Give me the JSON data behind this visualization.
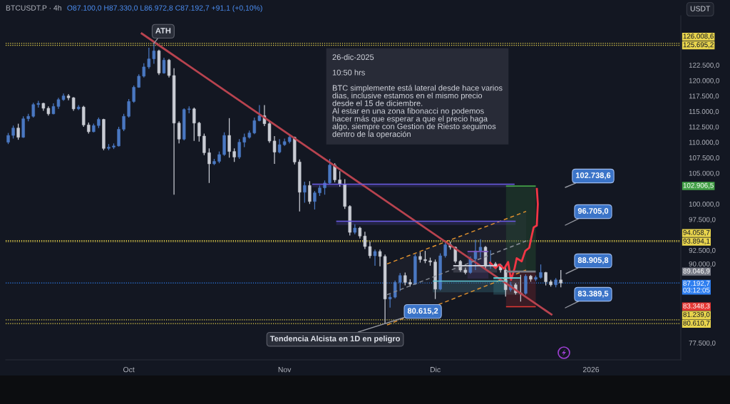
{
  "chart_data": {
    "type": "candlestick",
    "title": "BTCUSDT.P · 4h",
    "subtitle": "O87.100,0 H87.330,0 L86.972,8 C87.192,7 +91,1 (+0,10%)",
    "ylabel": "USDT",
    "x": [
      "2025-09-07",
      "2025-09-08",
      "2025-09-09",
      "2025-09-10",
      "2025-09-11",
      "2025-09-12",
      "2025-09-13",
      "2025-09-14",
      "2025-09-15",
      "2025-09-16",
      "2025-09-17",
      "2025-09-18",
      "2025-09-19",
      "2025-09-20",
      "2025-09-21",
      "2025-09-22",
      "2025-09-23",
      "2025-09-24",
      "2025-09-25",
      "2025-09-26",
      "2025-09-27",
      "2025-09-28",
      "2025-09-29",
      "2025-09-30",
      "2025-10-01",
      "2025-10-02",
      "2025-10-03",
      "2025-10-04",
      "2025-10-05",
      "2025-10-06",
      "2025-10-07",
      "2025-10-08",
      "2025-10-09",
      "2025-10-10",
      "2025-10-11",
      "2025-10-12",
      "2025-10-13",
      "2025-10-14",
      "2025-10-15",
      "2025-10-16",
      "2025-10-17",
      "2025-10-18",
      "2025-10-19",
      "2025-10-20",
      "2025-10-21",
      "2025-10-22",
      "2025-10-23",
      "2025-10-24",
      "2025-10-25",
      "2025-10-26",
      "2025-10-27",
      "2025-10-28",
      "2025-10-29",
      "2025-10-30",
      "2025-10-31",
      "2025-11-01",
      "2025-11-02",
      "2025-11-03",
      "2025-11-04",
      "2025-11-05",
      "2025-11-06",
      "2025-11-07",
      "2025-11-08",
      "2025-11-09",
      "2025-11-10",
      "2025-11-11",
      "2025-11-12",
      "2025-11-13",
      "2025-11-14",
      "2025-11-15",
      "2025-11-16",
      "2025-11-17",
      "2025-11-18",
      "2025-11-19",
      "2025-11-20",
      "2025-11-21",
      "2025-11-22",
      "2025-11-23",
      "2025-11-24",
      "2025-11-25",
      "2025-11-26",
      "2025-11-27",
      "2025-11-28",
      "2025-11-29",
      "2025-11-30",
      "2025-12-01",
      "2025-12-02",
      "2025-12-03",
      "2025-12-04",
      "2025-12-05",
      "2025-12-06",
      "2025-12-07",
      "2025-12-08",
      "2025-12-09",
      "2025-12-10",
      "2025-12-11",
      "2025-12-12",
      "2025-12-13",
      "2025-12-14",
      "2025-12-15",
      "2025-12-16",
      "2025-12-17",
      "2025-12-18",
      "2025-12-19",
      "2025-12-20",
      "2025-12-21",
      "2025-12-22",
      "2025-12-23",
      "2025-12-24",
      "2025-12-25",
      "2025-12-26"
    ],
    "ohlc": [
      [
        110000,
        111500,
        109700,
        111100
      ],
      [
        111100,
        112700,
        110600,
        112300
      ],
      [
        112300,
        113000,
        110400,
        110800
      ],
      [
        110800,
        114200,
        110700,
        113800
      ],
      [
        113800,
        114600,
        113400,
        114200
      ],
      [
        114200,
        116400,
        114000,
        116100
      ],
      [
        116100,
        116700,
        115600,
        116300
      ],
      [
        116300,
        116400,
        115100,
        115500
      ],
      [
        115500,
        115800,
        114300,
        114600
      ],
      [
        114600,
        116300,
        114500,
        115800
      ],
      [
        115800,
        117200,
        115400,
        116900
      ],
      [
        116900,
        117900,
        116700,
        117500
      ],
      [
        117500,
        117800,
        116800,
        117200
      ],
      [
        117200,
        117300,
        115100,
        115400
      ],
      [
        115400,
        116000,
        115200,
        115700
      ],
      [
        115700,
        115900,
        112500,
        112800
      ],
      [
        112800,
        113200,
        111400,
        111700
      ],
      [
        111700,
        113000,
        111600,
        112700
      ],
      [
        112700,
        114000,
        112300,
        113700
      ],
      [
        113700,
        113800,
        108700,
        109000
      ],
      [
        109000,
        109700,
        108700,
        109200
      ],
      [
        109200,
        109800,
        108900,
        109400
      ],
      [
        109400,
        112500,
        109300,
        112100
      ],
      [
        112100,
        114600,
        111800,
        114200
      ],
      [
        114200,
        117000,
        114000,
        116600
      ],
      [
        116600,
        119200,
        116400,
        118900
      ],
      [
        118900,
        121000,
        118800,
        120700
      ],
      [
        120700,
        122800,
        120500,
        122200
      ],
      [
        122200,
        125300,
        121900,
        123500
      ],
      [
        123500,
        126008.6,
        122700,
        124800
      ],
      [
        124800,
        125000,
        120900,
        121200
      ],
      [
        121200,
        123700,
        121100,
        123300
      ],
      [
        123300,
        123500,
        120500,
        120800
      ],
      [
        120800,
        122000,
        101500,
        113100
      ],
      [
        113100,
        113400,
        109800,
        110500
      ],
      [
        110500,
        115500,
        110300,
        115300
      ],
      [
        115300,
        115800,
        114700,
        115400
      ],
      [
        115400,
        115600,
        110200,
        113100
      ],
      [
        113100,
        113300,
        110100,
        111000
      ],
      [
        111000,
        111400,
        107900,
        108300
      ],
      [
        108300,
        109000,
        103400,
        106500
      ],
      [
        106500,
        107300,
        106300,
        106900
      ],
      [
        106900,
        108500,
        106600,
        108000
      ],
      [
        108000,
        111600,
        107800,
        111100
      ],
      [
        111100,
        113900,
        107500,
        108500
      ],
      [
        108500,
        109000,
        106800,
        107600
      ],
      [
        107600,
        110500,
        107300,
        110000
      ],
      [
        110000,
        111400,
        109200,
        110800
      ],
      [
        110800,
        111900,
        110600,
        111500
      ],
      [
        111500,
        114000,
        111300,
        113500
      ],
      [
        113500,
        116000,
        113400,
        114300
      ],
      [
        114300,
        116000,
        112600,
        113000
      ],
      [
        113000,
        113300,
        109900,
        110200
      ],
      [
        110200,
        111000,
        106500,
        108400
      ],
      [
        108400,
        110500,
        108200,
        109600
      ],
      [
        109600,
        110600,
        109400,
        110100
      ],
      [
        110100,
        111100,
        109800,
        110800
      ],
      [
        110800,
        110900,
        106400,
        106800
      ],
      [
        106800,
        107200,
        98800,
        101900
      ],
      [
        101900,
        103600,
        100200,
        103000
      ],
      [
        103000,
        103700,
        100000,
        100400
      ],
      [
        100400,
        102100,
        99100,
        101800
      ],
      [
        101800,
        103000,
        101300,
        102600
      ],
      [
        102600,
        103800,
        101500,
        103400
      ],
      [
        103400,
        107300,
        103200,
        106300
      ],
      [
        106300,
        106600,
        103500,
        103900
      ],
      [
        103900,
        105300,
        102800,
        103200
      ],
      [
        103200,
        104000,
        99200,
        99600
      ],
      [
        99600,
        99800,
        94900,
        95400
      ],
      [
        95400,
        96700,
        95100,
        96100
      ],
      [
        96100,
        96300,
        94400,
        94800
      ],
      [
        94800,
        95500,
        92700,
        93100
      ],
      [
        93100,
        93900,
        91200,
        91600
      ],
      [
        91600,
        92600,
        90000,
        92300
      ],
      [
        92300,
        92600,
        89900,
        91500
      ],
      [
        91500,
        91800,
        80615.2,
        84600
      ],
      [
        84600,
        85400,
        83200,
        84900
      ],
      [
        84900,
        87600,
        84700,
        87300
      ],
      [
        87300,
        88800,
        85900,
        88400
      ],
      [
        88400,
        88900,
        86800,
        87300
      ],
      [
        87300,
        87800,
        86600,
        87000
      ],
      [
        87000,
        91900,
        86900,
        91500
      ],
      [
        91500,
        92200,
        90500,
        91000
      ],
      [
        91000,
        92400,
        90400,
        90800
      ],
      [
        90800,
        91300,
        90000,
        90600
      ],
      [
        90600,
        91000,
        84600,
        86200
      ],
      [
        86200,
        92000,
        86000,
        91600
      ],
      [
        91600,
        93800,
        91300,
        93400
      ],
      [
        93400,
        93900,
        92600,
        93000
      ],
      [
        93000,
        93100,
        90400,
        90700
      ],
      [
        90700,
        90900,
        89000,
        89300
      ],
      [
        89300,
        89700,
        88600,
        88900
      ],
      [
        88900,
        91500,
        88700,
        91100
      ],
      [
        91100,
        94200,
        89300,
        92400
      ],
      [
        92400,
        94300,
        91300,
        93000
      ],
      [
        93000,
        93200,
        89500,
        90000
      ],
      [
        90000,
        92500,
        89500,
        90300
      ],
      [
        90300,
        90600,
        89600,
        90100
      ],
      [
        90100,
        90300,
        88900,
        89300
      ],
      [
        89300,
        89900,
        85000,
        86100
      ],
      [
        86100,
        87400,
        85800,
        86900
      ],
      [
        86900,
        87200,
        85300,
        85600
      ],
      [
        85600,
        88500,
        84200,
        85500
      ],
      [
        85500,
        88600,
        85300,
        88300
      ],
      [
        88300,
        88500,
        87400,
        87800
      ],
      [
        87800,
        88400,
        87500,
        88100
      ],
      [
        88100,
        90200,
        87900,
        88900
      ],
      [
        88900,
        89000,
        86800,
        87400
      ],
      [
        87400,
        87700,
        86600,
        86900
      ],
      [
        86900,
        88000,
        86500,
        87700
      ],
      [
        87700,
        89300,
        86500,
        87192.7
      ]
    ],
    "colors": [
      "#4a78c2",
      "#4a78c2",
      "#c9ccd4",
      "#4a78c2",
      "#4a78c2",
      "#4a78c2",
      "#4a78c2",
      "#c9ccd4",
      "#c9ccd4",
      "#4a78c2",
      "#4a78c2",
      "#4a78c2",
      "#c9ccd4",
      "#c9ccd4",
      "#4a78c2",
      "#c9ccd4",
      "#c9ccd4",
      "#4a78c2",
      "#4a78c2",
      "#c9ccd4",
      "#4a78c2",
      "#4a78c2",
      "#4a78c2",
      "#4a78c2",
      "#4a78c2",
      "#4a78c2",
      "#4a78c2",
      "#4a78c2",
      "#4a78c2",
      "#4a78c2",
      "#c9ccd4",
      "#4a78c2",
      "#c9ccd4",
      "#c9ccd4",
      "#c9ccd4",
      "#4a78c2",
      "#4a78c2",
      "#c9ccd4",
      "#c9ccd4",
      "#c9ccd4",
      "#c9ccd4",
      "#4a78c2",
      "#4a78c2",
      "#4a78c2",
      "#c9ccd4",
      "#c9ccd4",
      "#4a78c2",
      "#4a78c2",
      "#4a78c2",
      "#4a78c2",
      "#4a78c2",
      "#c9ccd4",
      "#c9ccd4",
      "#c9ccd4",
      "#4a78c2",
      "#4a78c2",
      "#4a78c2",
      "#c9ccd4",
      "#c9ccd4",
      "#4a78c2",
      "#c9ccd4",
      "#4a78c2",
      "#4a78c2",
      "#4a78c2",
      "#4a78c2",
      "#c9ccd4",
      "#c9ccd4",
      "#c9ccd4",
      "#c9ccd4",
      "#4a78c2",
      "#c9ccd4",
      "#c9ccd4",
      "#c9ccd4",
      "#4a78c2",
      "#c9ccd4",
      "#c9ccd4",
      "#4a78c2",
      "#4a78c2",
      "#4a78c2",
      "#c9ccd4",
      "#c9ccd4",
      "#4a78c2",
      "#c9ccd4",
      "#c9ccd4",
      "#c9ccd4",
      "#c9ccd4",
      "#4a78c2",
      "#4a78c2",
      "#c9ccd4",
      "#c9ccd4",
      "#c9ccd4",
      "#c9ccd4",
      "#4a78c2",
      "#4a78c2",
      "#4a78c2",
      "#c9ccd4",
      "#4a78c2",
      "#c9ccd4",
      "#c9ccd4",
      "#c9ccd4",
      "#4a78c2",
      "#c9ccd4",
      "#c9ccd4",
      "#4a78c2",
      "#c9ccd4",
      "#4a78c2",
      "#4a78c2",
      "#c9ccd4",
      "#c9ccd4",
      "#4a78c2",
      "#c9ccd4"
    ],
    "xlim": [
      "2025-09-06T12:00",
      "2026-01-18T21:00"
    ],
    "xticks": [
      {
        "value": "2025-10-01",
        "label": "Oct"
      },
      {
        "value": "2025-11-01",
        "label": "Nov"
      },
      {
        "value": "2025-12-01",
        "label": "Dic"
      },
      {
        "value": "2026-01-01",
        "label": "2026"
      }
    ],
    "ylim": [
      74750,
      130500
    ],
    "yticks": [
      {
        "value": 77500,
        "label": "77.500,0"
      },
      {
        "value": 90000,
        "label": "90.000,0"
      },
      {
        "value": 92500,
        "label": "92.500,0"
      },
      {
        "value": 97500,
        "label": "97.500,0"
      },
      {
        "value": 100000,
        "label": "100.000,0"
      },
      {
        "value": 105000,
        "label": "105.000,0"
      },
      {
        "value": 107500,
        "label": "107.500,0"
      },
      {
        "value": 110000,
        "label": "110.000,0"
      },
      {
        "value": 112500,
        "label": "112.500,0"
      },
      {
        "value": 115000,
        "label": "115.000,0"
      },
      {
        "value": 117500,
        "label": "117.500,0"
      },
      {
        "value": 120000,
        "label": "120.000,0"
      },
      {
        "value": 122500,
        "label": "122.500,0"
      }
    ],
    "grid": false,
    "series": [
      {
        "type": "line",
        "color": "#8a8f99",
        "line_style": "dashed",
        "x": [
          "2025-11-21T10:00",
          "2025-12-19T02:00"
        ],
        "values": [
          85300,
          94000
        ],
        "lower": [
          80400,
          89300
        ],
        "upper": [
          90300,
          98800
        ]
      },
      {
        "type": "line",
        "color": "#e8962e",
        "line_style": "dashed",
        "x": [
          "2025-11-21T10:00",
          "2025-12-19T02:00"
        ],
        "values": [
          90300,
          98800
        ]
      },
      {
        "type": "line",
        "color": "#e8962e",
        "line_style": "dashed",
        "x": [
          "2025-11-21T10:00",
          "2025-12-19T02:00"
        ],
        "values": [
          80400,
          89300
        ]
      },
      {
        "type": "line",
        "color": "#6c5ce7",
        "x": [
          "2025-11-06T12:00",
          "2025-12-16T19:00"
        ],
        "values": [
          103200,
          103200
        ],
        "lower": [
          102700,
          102700
        ],
        "upper": [
          103200,
          103200
        ]
      },
      {
        "type": "line",
        "color": "#6c5ce7",
        "x": [
          "2025-11-11T07:00",
          "2025-12-17T00:00"
        ],
        "values": [
          97200,
          97200
        ],
        "lower": [
          96600,
          96600
        ],
        "upper": [
          97200,
          97200
        ]
      },
      {
        "type": "line",
        "color": "#5fc9d8",
        "x": [
          "2025-11-30T12:00",
          "2025-12-15T10:00"
        ],
        "values": [
          87500,
          87500
        ],
        "lower": [
          85700,
          85700
        ],
        "upper": [
          87500,
          87500
        ]
      },
      {
        "type": "line",
        "color": "#d1d4dc",
        "x": [
          "2025-12-04T14:00",
          "2025-12-13T07:00"
        ],
        "values": [
          90000,
          90000
        ],
        "lower": [
          88900,
          88900
        ],
        "upper": [
          90000,
          90000
        ]
      },
      {
        "type": "line",
        "color": "#7e57c2",
        "x": [
          "2025-12-07T10:00",
          "2025-12-11T14:00"
        ],
        "values": [
          92300,
          92300
        ],
        "lower": [
          87900,
          87900
        ],
        "upper": [
          92300,
          92300
        ]
      },
      {
        "type": "line",
        "color": "#5fe0e8",
        "x": [
          "2025-12-12T14:00",
          "2025-12-18T00:00"
        ],
        "values": [
          88000,
          88000
        ],
        "lower": [
          85300,
          85300
        ],
        "upper": [
          88000,
          88000
        ]
      },
      {
        "type": "line",
        "color": "#43a047",
        "name": "102.906,5",
        "x": [
          "2025-12-15T02:00",
          "2025-12-21T00:00"
        ],
        "values": [
          102906.5,
          102906.5
        ],
        "lower": [
          89046.9,
          89046.9
        ],
        "upper": [
          102906.5,
          102906.5
        ]
      },
      {
        "type": "line",
        "color": "#e53935",
        "name": "83.348,3",
        "x": [
          "2025-12-15T02:00",
          "2025-12-21T00:00"
        ],
        "values": [
          83348.3,
          83348.3
        ],
        "lower": [
          83348.3,
          83348.3
        ],
        "upper": [
          89046.9,
          89046.9
        ]
      },
      {
        "type": "line",
        "color": "#787b86",
        "name": "89.046,9",
        "x": [
          "2025-12-15T02:00",
          "2025-12-21T00:00"
        ],
        "values": [
          89046.9,
          89046.9
        ]
      },
      {
        "type": "line",
        "color": "#b8434f",
        "x": [
          "2025-10-03T10:00",
          "2025-12-24T07:00"
        ],
        "values": [
          127700,
          82000
        ]
      },
      {
        "type": "line",
        "color": "#f23645",
        "x": [
          "2025-12-11T19:00",
          "2025-12-13T00:00",
          "2025-12-13T17:00",
          "2025-12-14T17:00",
          "2025-12-15T12:00",
          "2025-12-16T02:00",
          "2025-12-16T19:00",
          "2025-12-17T05:00",
          "2025-12-18T05:00",
          "2025-12-18T22:00",
          "2025-12-19T17:00",
          "2025-12-20T02:00",
          "2025-12-20T14:00",
          "2025-12-21T05:00",
          "2025-12-21T10:00",
          "2025-12-21T05:00"
        ],
        "values": [
          90600,
          89600,
          90200,
          89500,
          90600,
          87700,
          89600,
          91200,
          90700,
          92400,
          92900,
          94400,
          96200,
          96500,
          100000,
          102600
        ]
      }
    ],
    "ref_lines": [
      {
        "axis": "y",
        "value": 126008.6,
        "label": "126.008,6",
        "color": "#e8d44d",
        "line_style": "dotted"
      },
      {
        "axis": "y",
        "value": 125695.2,
        "label": "125.695,2",
        "color": "#e8d44d",
        "line_style": "dotted"
      },
      {
        "axis": "y",
        "value": 94058.7,
        "label": "94.058,7",
        "color": "#e8d44d",
        "line_style": "dotted"
      },
      {
        "axis": "y",
        "value": 93894.1,
        "label": "93.894,1",
        "color": "#e8d44d",
        "line_style": "dotted"
      },
      {
        "axis": "y",
        "value": 87192.7,
        "label": "87.192,7\n03:12:05",
        "color": "#2f7ff0",
        "line_style": "dotted"
      },
      {
        "axis": "y",
        "value": 81239.0,
        "label": "81.239,0",
        "color": "#e8d44d",
        "line_style": "dotted"
      },
      {
        "axis": "y",
        "value": 80610.7,
        "label": "80.610,7",
        "color": "#e8d44d",
        "line_style": "dotted"
      }
    ],
    "annotations": [
      "26-dic-2025\n\n10:50 hrs\n\nBTC simplemente está lateral desde hace varios\ndias, inclusive estamos en el mismo precio\ndesde el 15 de diciembre.\nAl estar en una zona fibonacci no podemos\nhacer más que esperar a que el precio haga\nalgo, siempre con Gestion de Riesto seguimos\ndentro de la operación",
      {
        "text": "ATH",
        "x": "2025-10-06",
        "y": 126008.6
      },
      {
        "text": "80.615,2",
        "x": "2025-11-21",
        "y": 80615.2
      },
      {
        "text": "Tendencia Alcista en 1D en peligro",
        "x": "2025-11-21",
        "y": 80615.2
      },
      "102.738,6",
      "96.705,0",
      "88.905,8",
      "83.389,5"
    ]
  }
}
